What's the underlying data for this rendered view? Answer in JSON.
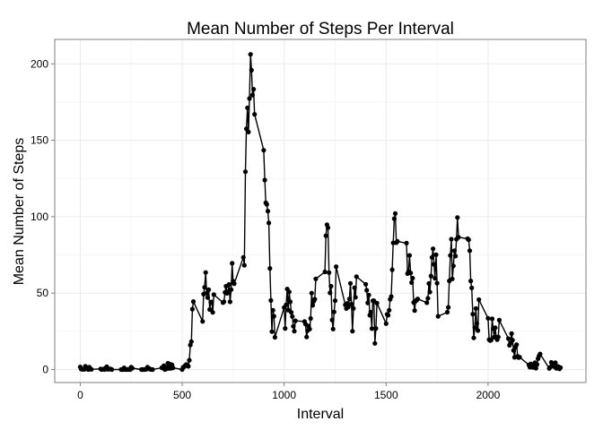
{
  "chart_data": {
    "type": "line",
    "title": "Mean Number of Steps Per Interval",
    "xlabel": "Interval",
    "ylabel": "Mean Number of Steps",
    "xlim": [
      -125,
      2480
    ],
    "ylim": [
      -8.5,
      216
    ],
    "xticks": [
      0,
      500,
      1000,
      1500,
      2000
    ],
    "yticks": [
      0,
      50,
      100,
      150,
      200
    ],
    "grid": true,
    "legend": "none",
    "line_color": "#000000",
    "series": [
      {
        "markers": true,
        "x": [
          0,
          5,
          10,
          15,
          20,
          25,
          30,
          35,
          40,
          45,
          50,
          55,
          100,
          105,
          110,
          115,
          120,
          125,
          130,
          135,
          140,
          145,
          150,
          155,
          200,
          205,
          210,
          215,
          220,
          225,
          230,
          235,
          240,
          245,
          250,
          255,
          300,
          305,
          310,
          315,
          320,
          325,
          330,
          335,
          340,
          345,
          350,
          355,
          400,
          405,
          410,
          415,
          420,
          425,
          430,
          435,
          440,
          445,
          450,
          455,
          500,
          505,
          510,
          515,
          520,
          525,
          530,
          535,
          540,
          545,
          550,
          555,
          600,
          605,
          610,
          615,
          620,
          625,
          630,
          635,
          640,
          645,
          650,
          655,
          700,
          705,
          710,
          715,
          720,
          725,
          730,
          735,
          740,
          745,
          750,
          755,
          800,
          805,
          810,
          815,
          820,
          825,
          830,
          835,
          840,
          845,
          850,
          855,
          900,
          905,
          910,
          915,
          920,
          925,
          930,
          935,
          940,
          945,
          950,
          955,
          1000,
          1005,
          1010,
          1015,
          1020,
          1025,
          1030,
          1035,
          1040,
          1045,
          1050,
          1055,
          1100,
          1105,
          1110,
          1115,
          1120,
          1125,
          1130,
          1135,
          1140,
          1145,
          1150,
          1155,
          1200,
          1205,
          1210,
          1215,
          1220,
          1225,
          1230,
          1235,
          1240,
          1245,
          1250,
          1255,
          1300,
          1305,
          1310,
          1315,
          1320,
          1325,
          1330,
          1335,
          1340,
          1345,
          1350,
          1355,
          1400,
          1405,
          1410,
          1415,
          1420,
          1425,
          1430,
          1435,
          1440,
          1445,
          1450,
          1455,
          1500,
          1505,
          1510,
          1515,
          1520,
          1525,
          1530,
          1535,
          1540,
          1545,
          1550,
          1555,
          1600,
          1605,
          1610,
          1615,
          1620,
          1625,
          1630,
          1635,
          1640,
          1645,
          1650,
          1655,
          1700,
          1705,
          1710,
          1715,
          1720,
          1725,
          1730,
          1735,
          1740,
          1745,
          1750,
          1755,
          1800,
          1805,
          1810,
          1815,
          1820,
          1825,
          1830,
          1835,
          1840,
          1845,
          1850,
          1855,
          1900,
          1905,
          1910,
          1915,
          1920,
          1925,
          1930,
          1935,
          1940,
          1945,
          1950,
          1955,
          2000,
          2005,
          2010,
          2015,
          2020,
          2025,
          2030,
          2035,
          2040,
          2045,
          2050,
          2055,
          2100,
          2105,
          2110,
          2115,
          2120,
          2125,
          2130,
          2135,
          2140,
          2145,
          2150,
          2155,
          2200,
          2205,
          2210,
          2215,
          2220,
          2225,
          2230,
          2235,
          2240,
          2245,
          2250,
          2255,
          2300,
          2305,
          2310,
          2315,
          2320,
          2325,
          2330,
          2335,
          2340,
          2345,
          2350,
          2355
        ],
        "y": [
          1.7,
          0.3,
          0.1,
          0.2,
          0.1,
          2.1,
          0.5,
          0.9,
          0.0,
          1.5,
          0.3,
          0.1,
          0.4,
          0.0,
          0.2,
          0.3,
          0.0,
          1.1,
          1.8,
          0.2,
          0.2,
          0.4,
          0.3,
          0.0,
          0.0,
          0.0,
          0.0,
          1.1,
          0.0,
          0.0,
          0.0,
          0.2,
          0.0,
          0.0,
          1.5,
          0.9,
          0.0,
          0.0,
          0.0,
          0.0,
          0.2,
          0.2,
          1.6,
          0.6,
          0.5,
          0.1,
          0.0,
          0.0,
          1.2,
          1.0,
          2.5,
          0.0,
          0.3,
          1.1,
          4.1,
          0.7,
          3.5,
          0.8,
          3.1,
          1.1,
          0.0,
          1.5,
          1.8,
          2.6,
          3.3,
          3.0,
          2.1,
          6.1,
          16.0,
          18.3,
          39.5,
          44.5,
          31.5,
          49.3,
          53.8,
          63.5,
          50.0,
          47.1,
          52.2,
          39.3,
          44.0,
          44.2,
          37.4,
          49.0,
          43.8,
          44.4,
          50.5,
          54.5,
          49.9,
          51.0,
          55.7,
          44.3,
          52.3,
          69.5,
          57.8,
          56.2,
          73.4,
          68.2,
          129.4,
          157.5,
          171.2,
          155.4,
          177.3,
          206.2,
          195.9,
          179.6,
          183.4,
          167.0,
          143.5,
          124.0,
          109.1,
          108.1,
          103.7,
          95.9,
          66.2,
          45.2,
          24.8,
          38.8,
          34.9,
          21.1,
          40.6,
          26.9,
          42.4,
          52.7,
          38.9,
          50.8,
          44.3,
          37.4,
          34.7,
          28.3,
          25.1,
          31.9,
          31.4,
          29.7,
          21.3,
          25.5,
          28.4,
          26.5,
          33.4,
          50.0,
          42.0,
          44.6,
          46.0,
          59.3,
          63.9,
          87.6,
          94.8,
          92.8,
          63.4,
          50.2,
          54.5,
          32.4,
          26.5,
          37.7,
          45.1,
          67.3,
          42.3,
          39.9,
          43.3,
          40.9,
          46.2,
          56.4,
          42.8,
          25.1,
          40.0,
          53.5,
          47.3,
          60.8,
          55.8,
          51.9,
          43.6,
          48.7,
          35.5,
          37.5,
          26.8,
          45.0,
          45.0,
          17.1,
          26.9,
          43.5,
          30.0,
          36.1,
          35.5,
          38.8,
          45.9,
          47.8,
          65.3,
          82.9,
          98.7,
          102.1,
          83.0,
          83.9,
          82.7,
          62.8,
          64.1,
          74.7,
          63.2,
          56.9,
          59.8,
          43.9,
          38.6,
          44.7,
          45.5,
          46.2,
          43.7,
          46.6,
          56.3,
          50.7,
          61.2,
          73.4,
          79.0,
          68.9,
          59.7,
          75.1,
          56.5,
          34.8,
          37.5,
          40.7,
          58.0,
          74.7,
          85.3,
          59.3,
          67.8,
          77.7,
          74.2,
          85.3,
          99.5,
          86.6,
          85.6,
          84.9,
          77.8,
          58.0,
          53.4,
          36.3,
          20.7,
          27.4,
          40.0,
          30.2,
          25.5,
          45.7,
          33.5,
          19.6,
          19.0,
          19.3,
          33.2,
          26.8,
          21.2,
          27.3,
          21.3,
          19.5,
          21.3,
          32.3,
          20.2,
          15.9,
          17.2,
          23.5,
          19.2,
          12.5,
          8.0,
          14.7,
          16.3,
          8.7,
          7.8,
          8.1,
          3.0,
          1.5,
          3.7,
          2.2,
          1.4,
          2.0,
          4.5,
          0.9,
          3.3,
          7.1,
          8.9,
          10.2,
          0.7,
          1.5,
          4.7,
          3.0,
          3.3,
          1.8,
          4.5,
          0.8,
          2.1,
          1.9,
          0.4,
          1.3
        ]
      }
    ]
  }
}
